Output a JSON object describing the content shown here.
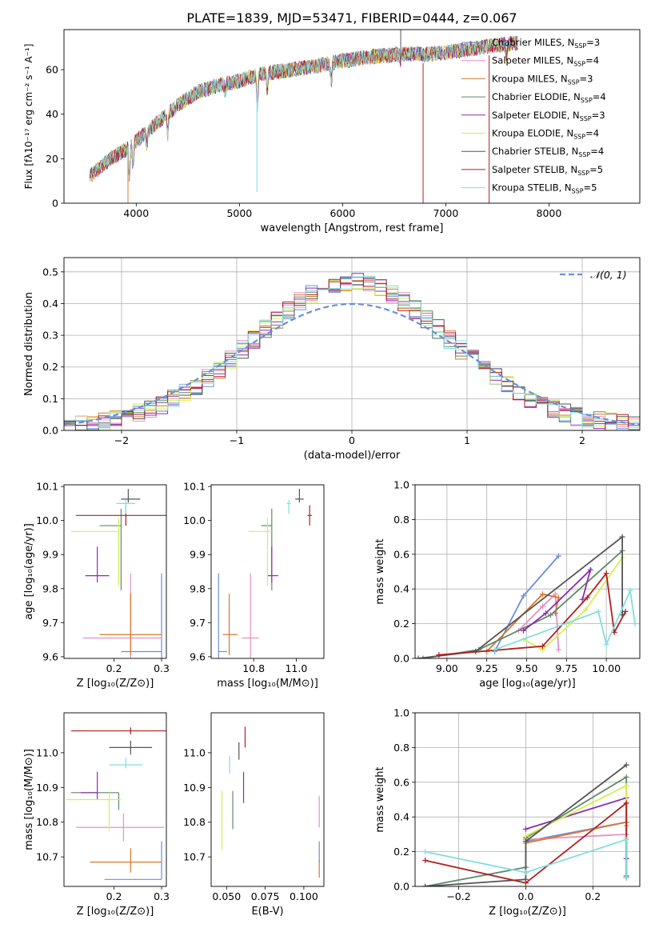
{
  "figure_title": "PLATE=1839, MJD=53471, FIBERID=0444, z=0.067",
  "series_meta": [
    {
      "name": "Chabrier MILES",
      "nssp": "3",
      "color": "#6a8fd9"
    },
    {
      "name": "Salpeter MILES",
      "nssp": "4",
      "color": "#e88fc7"
    },
    {
      "name": "Kroupa MILES",
      "nssp": "3",
      "color": "#d9772b"
    },
    {
      "name": "Chabrier ELODIE",
      "nssp": "4",
      "color": "#5f8a6a"
    },
    {
      "name": "Salpeter ELODIE",
      "nssp": "3",
      "color": "#8e2bb0"
    },
    {
      "name": "Kroupa ELODIE",
      "nssp": "4",
      "color": "#d6ef4e"
    },
    {
      "name": "Chabrier STELIB",
      "nssp": "4",
      "color": "#555555"
    },
    {
      "name": "Salpeter STELIB",
      "nssp": "5",
      "color": "#b01e1e"
    },
    {
      "name": "Kroupa STELIB",
      "nssp": "5",
      "color": "#82dde0"
    }
  ],
  "chart_data": [
    {
      "id": "spectrum",
      "type": "line",
      "xlabel": "wavelength [Angstrom, rest frame]",
      "ylabel": "Flux [fλ10⁻¹⁷ erg cm⁻² s⁻¹ A⁻¹]",
      "xlim": [
        3300,
        8880
      ],
      "ylim": [
        0,
        78
      ],
      "xticks": [
        "4000",
        "5000",
        "6000",
        "7000",
        "8000"
      ],
      "yticks": [
        "0",
        "20",
        "40",
        "60"
      ],
      "legend": "top-right",
      "continuum": [
        [
          3550,
          12
        ],
        [
          3750,
          20
        ],
        [
          3900,
          24
        ],
        [
          4000,
          28
        ],
        [
          4200,
          36
        ],
        [
          4400,
          44
        ],
        [
          4600,
          50
        ],
        [
          4800,
          53
        ],
        [
          5000,
          55
        ],
        [
          5200,
          58
        ],
        [
          5500,
          60
        ],
        [
          5800,
          62
        ],
        [
          6000,
          64
        ],
        [
          6300,
          66
        ],
        [
          6600,
          67
        ],
        [
          6900,
          67
        ],
        [
          7200,
          69
        ],
        [
          7500,
          71
        ],
        [
          7700,
          72
        ]
      ],
      "absorption": [
        [
          3934,
          14
        ],
        [
          3969,
          12
        ],
        [
          4102,
          6
        ],
        [
          4304,
          10
        ],
        [
          4861,
          4
        ],
        [
          5175,
          14
        ],
        [
          5270,
          8
        ],
        [
          5890,
          8
        ],
        [
          6563,
          3
        ],
        [
          7590,
          6
        ]
      ],
      "spikes": [
        [
          3920,
          0
        ],
        [
          5170,
          5
        ],
        [
          6780,
          0
        ],
        [
          7420,
          0
        ],
        [
          6563,
          79
        ]
      ]
    },
    {
      "id": "residuals",
      "type": "histogram",
      "xlabel": "(data-model)/error",
      "ylabel": "Normed distribution",
      "xlim": [
        -2.5,
        2.5
      ],
      "ylim": [
        0,
        0.545
      ],
      "xticks": [
        "−2",
        "−1",
        "0",
        "1",
        "2"
      ],
      "yticks": [
        "0.0",
        "0.1",
        "0.2",
        "0.3",
        "0.4",
        "0.5"
      ],
      "legend_label": "𝒩(0, 1)",
      "gaussian": {
        "mu": 0,
        "sigma": 1
      },
      "bins": {
        "start": -2.5,
        "width": 0.1,
        "count": 50
      }
    },
    {
      "id": "age_vs_z",
      "type": "errorbar",
      "xlabel": "Z [log₁₀(Z/Z⊙)]",
      "ylabel": "age  [log₁₀(age/yr)]",
      "xlim": [
        0.095,
        0.31
      ],
      "ylim": [
        9.595,
        10.105
      ],
      "xticks": [
        "0.2",
        "0.3"
      ],
      "yticks": [
        "9.6",
        "9.7",
        "9.8",
        "9.9",
        "10.0",
        "10.1"
      ],
      "points": [
        {
          "x": 0.3,
          "xerr": [
            0.085,
            0.0
          ],
          "y": 9.615,
          "yerr": [
            0.02,
            0.23
          ]
        },
        {
          "x": 0.235,
          "xerr": [
            0.1,
            0.065
          ],
          "y": 9.655,
          "yerr": [
            0.06,
            0.19
          ]
        },
        {
          "x": 0.235,
          "xerr": [
            0.065,
            0.065
          ],
          "y": 9.665,
          "yerr": [
            0.06,
            0.12
          ]
        },
        {
          "x": 0.215,
          "xerr": [
            0.045,
            0.0
          ],
          "y": 9.985,
          "yerr": [
            0.19,
            0.05
          ]
        },
        {
          "x": 0.165,
          "xerr": [
            0.025,
            0.025
          ],
          "y": 9.838,
          "yerr": [
            0.02,
            0.085
          ]
        },
        {
          "x": 0.21,
          "xerr": [
            0.1,
            0.0
          ],
          "y": 9.968,
          "yerr": [
            0.16,
            0.04
          ]
        },
        {
          "x": 0.23,
          "xerr": [
            0.015,
            0.025
          ],
          "y": 10.063,
          "yerr": [
            0.01,
            0.03
          ]
        },
        {
          "x": 0.225,
          "xerr": [
            0.105,
            0.085
          ],
          "y": 10.015,
          "yerr": [
            0.03,
            0.03
          ]
        },
        {
          "x": 0.225,
          "xerr": [
            0.02,
            0.02
          ],
          "y": 10.05,
          "yerr": [
            0.03,
            0.01
          ]
        }
      ]
    },
    {
      "id": "age_vs_mass",
      "type": "errorbar",
      "xlabel": "mass [log₁₀(M/M⊙)]",
      "ylabel": "",
      "xlim": [
        10.6,
        11.13
      ],
      "ylim": [
        9.595,
        10.105
      ],
      "xticks": [
        "10.8",
        "11.0"
      ],
      "yticks": [
        "9.6",
        "9.7",
        "9.8",
        "9.9",
        "10.0",
        "10.1"
      ],
      "points": [
        {
          "x": 10.635,
          "xerr": [
            0.0,
            0.04
          ],
          "y": 9.615,
          "yerr": [
            0.02,
            0.23
          ]
        },
        {
          "x": 10.785,
          "xerr": [
            0.04,
            0.04
          ],
          "y": 9.655,
          "yerr": [
            0.06,
            0.19
          ]
        },
        {
          "x": 10.685,
          "xerr": [
            0.03,
            0.04
          ],
          "y": 9.665,
          "yerr": [
            0.06,
            0.12
          ]
        },
        {
          "x": 10.885,
          "xerr": [
            0.05,
            0.0
          ],
          "y": 9.985,
          "yerr": [
            0.19,
            0.05
          ]
        },
        {
          "x": 10.885,
          "xerr": [
            0.02,
            0.03
          ],
          "y": 9.838,
          "yerr": [
            0.02,
            0.085
          ]
        },
        {
          "x": 10.865,
          "xerr": [
            0.09,
            0.02
          ],
          "y": 9.968,
          "yerr": [
            0.16,
            0.04
          ]
        },
        {
          "x": 11.015,
          "xerr": [
            0.02,
            0.02
          ],
          "y": 10.063,
          "yerr": [
            0.01,
            0.03
          ]
        },
        {
          "x": 11.063,
          "xerr": [
            0.01,
            0.01
          ],
          "y": 10.015,
          "yerr": [
            0.03,
            0.03
          ]
        },
        {
          "x": 10.965,
          "xerr": [
            0.01,
            0.01
          ],
          "y": 10.05,
          "yerr": [
            0.03,
            0.01
          ]
        }
      ]
    },
    {
      "id": "weights_vs_age",
      "type": "line",
      "xlabel": "age  [log₁₀(age/yr)]",
      "ylabel": "mass weight",
      "xlim": [
        8.8,
        10.21
      ],
      "ylim": [
        0,
        1.0
      ],
      "xticks": [
        "9.00",
        "9.25",
        "9.50",
        "9.75",
        "10.00"
      ],
      "yticks": [
        "0.0",
        "0.2",
        "0.4",
        "0.6",
        "0.8",
        "1.0"
      ],
      "series": [
        {
          "values": [
            [
              9.3,
              0.04
            ],
            [
              9.48,
              0.36
            ],
            [
              9.7,
              0.59
            ]
          ]
        },
        {
          "values": [
            [
              9.45,
              0.16
            ],
            [
              9.6,
              0.3
            ],
            [
              9.68,
              0.37
            ],
            [
              9.7,
              0.05
            ]
          ]
        },
        {
          "values": [
            [
              9.25,
              0.04
            ],
            [
              9.6,
              0.37
            ],
            [
              9.7,
              0.35
            ],
            [
              9.68,
              0.26
            ]
          ]
        },
        {
          "values": [
            [
              8.85,
              0.0
            ],
            [
              9.2,
              0.05
            ],
            [
              9.65,
              0.25
            ],
            [
              10.1,
              0.62
            ]
          ]
        },
        {
          "values": [
            [
              9.48,
              0.16
            ],
            [
              9.62,
              0.26
            ],
            [
              9.9,
              0.51
            ],
            [
              9.85,
              0.34
            ]
          ]
        },
        {
          "values": [
            [
              9.48,
              0.11
            ],
            [
              9.6,
              0.05
            ],
            [
              9.87,
              0.28
            ],
            [
              10.1,
              0.58
            ]
          ]
        },
        {
          "values": [
            [
              8.82,
              0.0
            ],
            [
              9.18,
              0.04
            ],
            [
              10.1,
              0.7
            ],
            [
              10.1,
              0.25
            ]
          ]
        },
        {
          "values": [
            [
              8.95,
              0.02
            ],
            [
              9.6,
              0.07
            ],
            [
              9.88,
              0.35
            ],
            [
              10.0,
              0.49
            ],
            [
              10.05,
              0.15
            ],
            [
              10.12,
              0.27
            ]
          ]
        },
        {
          "values": [
            [
              9.3,
              0.05
            ],
            [
              9.95,
              0.27
            ],
            [
              10.0,
              0.08
            ],
            [
              10.15,
              0.39
            ],
            [
              10.18,
              0.2
            ]
          ]
        }
      ]
    },
    {
      "id": "mass_vs_z",
      "type": "errorbar",
      "xlabel": "Z [log₁₀(Z/Z⊙)]",
      "ylabel": "mass [log₁₀(M/M⊙)]",
      "xlim": [
        0.095,
        0.31
      ],
      "ylim": [
        10.615,
        11.115
      ],
      "xticks": [
        "0.2",
        "0.3"
      ],
      "yticks": [
        "10.7",
        "10.8",
        "10.9",
        "11.0"
      ],
      "points": [
        {
          "x": 0.3,
          "xerr": [
            0.12,
            0.0
          ],
          "y": 10.635,
          "yerr": [
            0.0,
            0.11
          ]
        },
        {
          "x": 0.22,
          "xerr": [
            0.1,
            0.085
          ],
          "y": 10.785,
          "yerr": [
            0.04,
            0.04
          ]
        },
        {
          "x": 0.235,
          "xerr": [
            0.085,
            0.065
          ],
          "y": 10.685,
          "yerr": [
            0.03,
            0.04
          ]
        },
        {
          "x": 0.21,
          "xerr": [
            0.1,
            0.0
          ],
          "y": 10.885,
          "yerr": [
            0.05,
            0.0
          ]
        },
        {
          "x": 0.165,
          "xerr": [
            0.035,
            0.0
          ],
          "y": 10.885,
          "yerr": [
            0.02,
            0.06
          ]
        },
        {
          "x": 0.19,
          "xerr": [
            0.09,
            0.025
          ],
          "y": 10.865,
          "yerr": [
            0.09,
            0.02
          ]
        },
        {
          "x": 0.235,
          "xerr": [
            0.045,
            0.045
          ],
          "y": 11.015,
          "yerr": [
            0.02,
            0.02
          ]
        },
        {
          "x": 0.235,
          "xerr": [
            0.125,
            0.085
          ],
          "y": 11.063,
          "yerr": [
            0.01,
            0.01
          ]
        },
        {
          "x": 0.225,
          "xerr": [
            0.035,
            0.035
          ],
          "y": 10.965,
          "yerr": [
            0.01,
            0.02
          ]
        }
      ]
    },
    {
      "id": "mass_vs_ebv",
      "type": "errorbar",
      "xlabel": "E(B-V)",
      "ylabel": "",
      "xlim": [
        0.04,
        0.113
      ],
      "ylim": [
        10.615,
        11.115
      ],
      "xticks": [
        "0.050",
        "0.075",
        "0.100"
      ],
      "yticks": [
        "10.7",
        "10.8",
        "10.9",
        "11.0"
      ],
      "points": [
        {
          "x": 0.11,
          "xerr": [
            0.0,
            0.0
          ],
          "y": 10.685,
          "yerr": [
            0.0,
            0.06
          ]
        },
        {
          "x": 0.11,
          "xerr": [
            0.0,
            0.0
          ],
          "y": 10.785,
          "yerr": [
            0.0,
            0.09
          ]
        },
        {
          "x": 0.11,
          "xerr": [
            0.0,
            0.0
          ],
          "y": 10.69,
          "yerr": [
            0.05,
            0.0
          ]
        },
        {
          "x": 0.054,
          "xerr": [
            0.0,
            0.0
          ],
          "y": 10.83,
          "yerr": [
            0.05,
            0.06
          ]
        },
        {
          "x": 0.061,
          "xerr": [
            0.0,
            0.0
          ],
          "y": 10.9,
          "yerr": [
            0.045,
            0.045
          ]
        },
        {
          "x": 0.047,
          "xerr": [
            0.0,
            0.0
          ],
          "y": 10.8,
          "yerr": [
            0.08,
            0.09
          ]
        },
        {
          "x": 0.058,
          "xerr": [
            0.0,
            0.0
          ],
          "y": 11.005,
          "yerr": [
            0.025,
            0.025
          ]
        },
        {
          "x": 0.062,
          "xerr": [
            0.0,
            0.0
          ],
          "y": 11.045,
          "yerr": [
            0.03,
            0.03
          ]
        },
        {
          "x": 0.052,
          "xerr": [
            0.0,
            0.0
          ],
          "y": 10.965,
          "yerr": [
            0.025,
            0.025
          ]
        }
      ]
    },
    {
      "id": "weights_vs_z",
      "type": "line",
      "xlabel": "Z [log₁₀(Z/Z⊙)]",
      "ylabel": "mass weight",
      "xlim": [
        -0.33,
        0.34
      ],
      "ylim": [
        0,
        1.0
      ],
      "xticks": [
        "−0.2",
        "0.0",
        "0.2"
      ],
      "yticks": [
        "0.0",
        "0.2",
        "0.4",
        "0.6",
        "0.8",
        "1.0"
      ],
      "series": [
        {
          "values": [
            [
              0.0,
              0.26
            ],
            [
              0.3,
              0.37
            ],
            [
              0.3,
              0.06
            ]
          ]
        },
        {
          "values": [
            [
              0.0,
              0.27
            ],
            [
              0.3,
              0.3
            ],
            [
              0.3,
              0.05
            ]
          ]
        },
        {
          "values": [
            [
              0.0,
              0.25
            ],
            [
              0.3,
              0.37
            ],
            [
              0.3,
              0.35
            ]
          ]
        },
        {
          "values": [
            [
              -0.3,
              0.0
            ],
            [
              0.0,
              0.11
            ],
            [
              0.0,
              0.28
            ],
            [
              0.3,
              0.63
            ],
            [
              0.3,
              0.06
            ]
          ]
        },
        {
          "values": [
            [
              0.0,
              0.33
            ],
            [
              0.3,
              0.51
            ],
            [
              0.3,
              0.16
            ]
          ]
        },
        {
          "values": [
            [
              0.0,
              0.29
            ],
            [
              0.3,
              0.58
            ],
            [
              0.3,
              0.28
            ]
          ]
        },
        {
          "values": [
            [
              -0.3,
              0.0
            ],
            [
              0.0,
              0.04
            ],
            [
              0.0,
              0.26
            ],
            [
              0.3,
              0.7
            ]
          ]
        },
        {
          "values": [
            [
              -0.3,
              0.15
            ],
            [
              0.0,
              0.02
            ],
            [
              0.3,
              0.48
            ],
            [
              0.3,
              0.05
            ]
          ]
        },
        {
          "values": [
            [
              -0.3,
              0.2
            ],
            [
              0.0,
              0.08
            ],
            [
              0.3,
              0.27
            ],
            [
              0.3,
              0.05
            ]
          ]
        }
      ]
    }
  ]
}
